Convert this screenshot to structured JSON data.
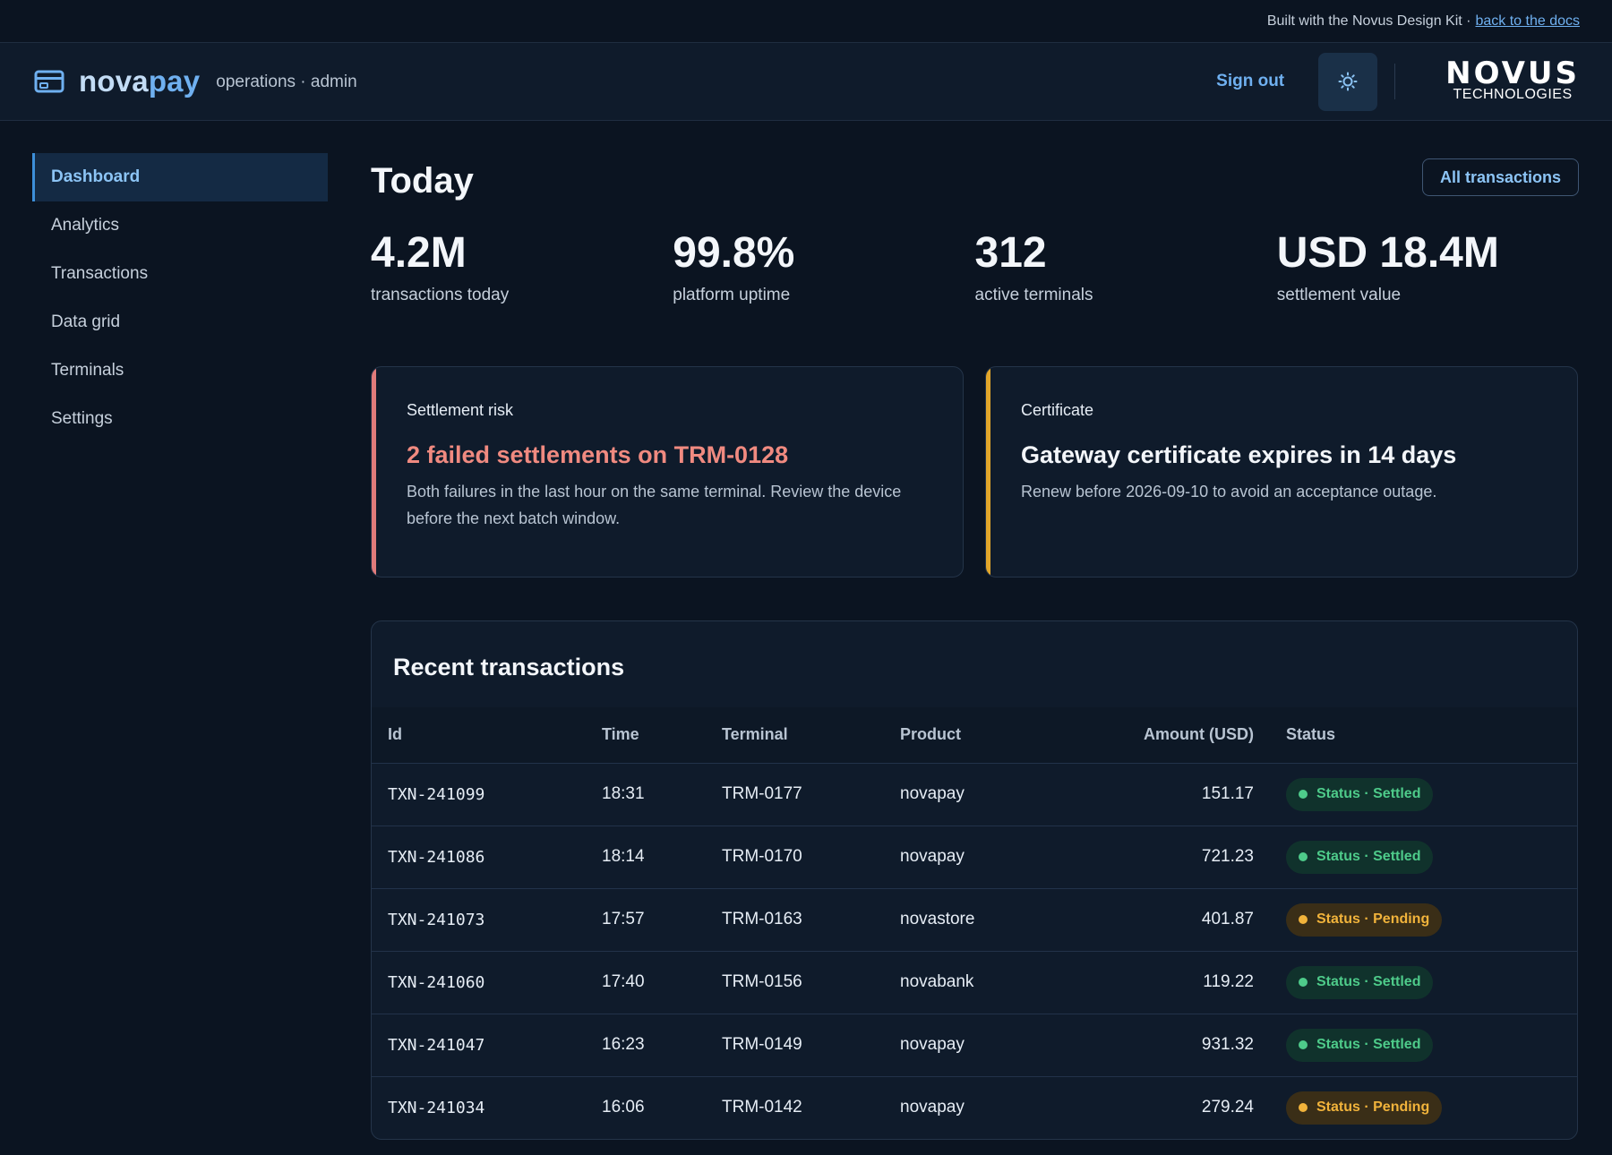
{
  "banner": {
    "text": "Built with the Novus Design Kit ·",
    "link": "back to the docs"
  },
  "header": {
    "brand_nova": "nova",
    "brand_pay": "pay",
    "subtitle": "operations · admin",
    "sign_out": "Sign out",
    "theme_icon": "sun-icon",
    "logo_main": "NOVUS",
    "logo_sub": "TECHNOLOGIES"
  },
  "sidebar": {
    "items": [
      {
        "label": "Dashboard",
        "active": true
      },
      {
        "label": "Analytics"
      },
      {
        "label": "Transactions"
      },
      {
        "label": "Data grid"
      },
      {
        "label": "Terminals"
      },
      {
        "label": "Settings"
      }
    ]
  },
  "page": {
    "title": "Today",
    "all_transactions": "All transactions"
  },
  "stats": [
    {
      "value": "4.2M",
      "label": "transactions today"
    },
    {
      "value": "99.8%",
      "label": "platform uptime"
    },
    {
      "value": "312",
      "label": "active terminals"
    },
    {
      "value": "USD 18.4M",
      "label": "settlement value"
    }
  ],
  "alerts": {
    "risk": {
      "eyebrow": "Settlement risk",
      "title": "2 failed settlements on TRM-0128",
      "body": "Both failures in the last hour on the same terminal. Review the device before the next batch window.",
      "color": "#e07b7b"
    },
    "cert": {
      "eyebrow": "Certificate",
      "title": "Gateway certificate expires in 14 days",
      "body": "Renew before 2026-09-10 to avoid an acceptance outage.",
      "color": "#e2a62a"
    }
  },
  "table": {
    "title": "Recent transactions",
    "columns": [
      "Id",
      "Time",
      "Terminal",
      "Product",
      "Amount (USD)",
      "Status"
    ],
    "rows": [
      {
        "id": "TXN-241099",
        "time": "18:31",
        "terminal": "TRM-0177",
        "product": "novapay",
        "amount": "151.17",
        "status": "Status · Settled",
        "kind": "settled"
      },
      {
        "id": "TXN-241086",
        "time": "18:14",
        "terminal": "TRM-0170",
        "product": "novapay",
        "amount": "721.23",
        "status": "Status · Settled",
        "kind": "settled"
      },
      {
        "id": "TXN-241073",
        "time": "17:57",
        "terminal": "TRM-0163",
        "product": "novastore",
        "amount": "401.87",
        "status": "Status · Pending",
        "kind": "pending"
      },
      {
        "id": "TXN-241060",
        "time": "17:40",
        "terminal": "TRM-0156",
        "product": "novabank",
        "amount": "119.22",
        "status": "Status · Settled",
        "kind": "settled"
      },
      {
        "id": "TXN-241047",
        "time": "16:23",
        "terminal": "TRM-0149",
        "product": "novapay",
        "amount": "931.32",
        "status": "Status · Settled",
        "kind": "settled"
      },
      {
        "id": "TXN-241034",
        "time": "16:06",
        "terminal": "TRM-0142",
        "product": "novapay",
        "amount": "279.24",
        "status": "Status · Pending",
        "kind": "pending"
      }
    ]
  },
  "colors": {
    "accent": "#6fb0f0",
    "settled": "#4ecb8a",
    "pending": "#f1b33b",
    "risk": "#f08a80"
  }
}
